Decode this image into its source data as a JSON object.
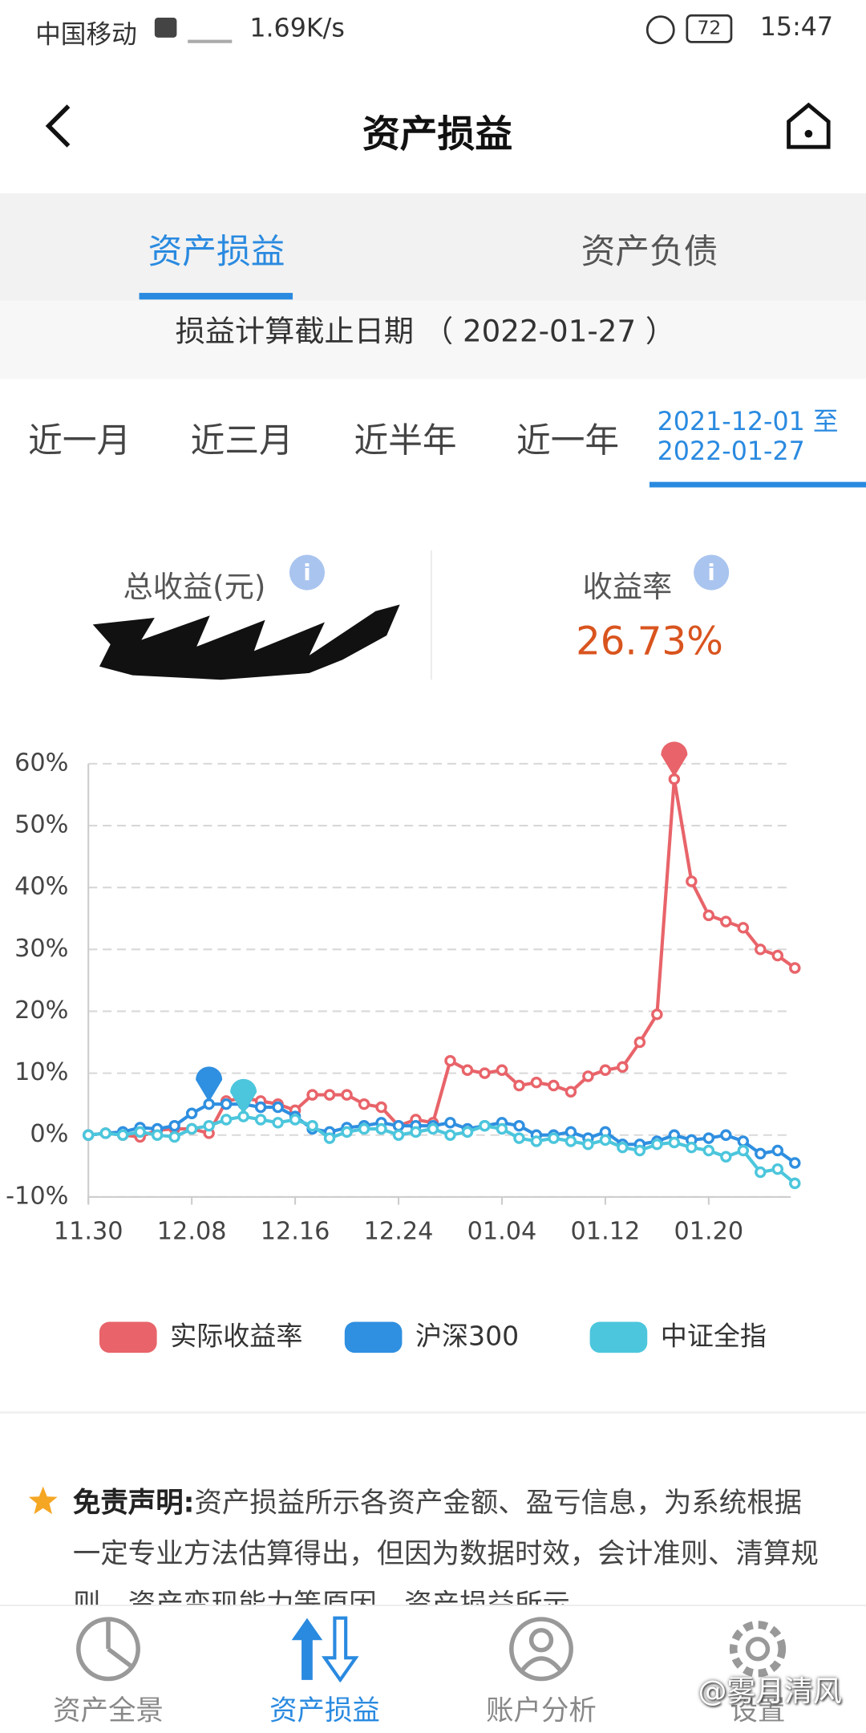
{
  "status_bar": {
    "carrier": "中国移动",
    "speed": "1.69K/s",
    "battery": "72",
    "time": "15:47"
  },
  "header": {
    "title": "资产损益"
  },
  "tabs": [
    "资产损益",
    "资产负债"
  ],
  "cutoff": "损益计算截止日期 （ 2022-01-27 ）",
  "periods": [
    "近一月",
    "近三月",
    "近半年",
    "近一年"
  ],
  "custom_range": [
    "2021-12-01 至",
    "2022-01-27"
  ],
  "summary": {
    "total_label": "总收益(元)",
    "rate_label": "收益率",
    "rate_value": "26.73%"
  },
  "chart_data": {
    "type": "line",
    "categories": [
      "11.30",
      null,
      null,
      null,
      null,
      null,
      "12.08",
      null,
      null,
      null,
      null,
      null,
      "12.16",
      null,
      null,
      null,
      null,
      null,
      "12.24",
      null,
      null,
      null,
      null,
      null,
      "01.04",
      null,
      null,
      null,
      null,
      null,
      "01.12",
      null,
      null,
      null,
      null,
      null,
      "01.20",
      null,
      null,
      null,
      null,
      null
    ],
    "series": [
      {
        "name": "实际收益率",
        "color": "#e8646a",
        "values": [
          0,
          0.3,
          0,
          -0.3,
          0.8,
          1,
          1,
          0.3,
          5.5,
          6,
          5.5,
          5,
          4,
          6.5,
          6.5,
          6.5,
          5,
          4.5,
          1.5,
          2.5,
          2,
          12,
          10.5,
          10,
          10.5,
          8,
          8.5,
          8,
          7,
          9.5,
          10.5,
          11,
          15,
          19.5,
          57.5,
          41,
          35.5,
          34.5,
          33.5,
          30,
          29,
          27
        ]
      },
      {
        "name": "沪深300",
        "color": "#2f8fe0",
        "values": [
          0,
          0.3,
          0.5,
          1.2,
          1,
          1.5,
          3.5,
          5,
          5,
          5,
          4.5,
          4.5,
          3,
          1,
          0.5,
          1.2,
          1.5,
          2,
          1.5,
          1.5,
          1.5,
          2,
          1,
          1.5,
          2,
          1.5,
          0,
          0,
          0.5,
          -0.5,
          0.5,
          -1.5,
          -1.5,
          -1,
          0,
          -0.8,
          -0.5,
          0,
          -1,
          -3,
          -2.5,
          -4.5
        ]
      },
      {
        "name": "中证全指",
        "color": "#4cc6dc",
        "values": [
          0,
          0.3,
          0,
          0.5,
          0,
          -0.3,
          1,
          1.5,
          2.5,
          3,
          2.5,
          2,
          2.5,
          1.5,
          -0.5,
          0.5,
          1,
          1,
          0,
          0.5,
          1,
          0,
          0.5,
          1.5,
          1,
          -0.5,
          -1,
          -0.5,
          -1,
          -1.5,
          -0.8,
          -2,
          -2.5,
          -1.5,
          -1.2,
          -2,
          -2.5,
          -3.5,
          -2.5,
          -6,
          -5.5,
          -7.8
        ]
      }
    ],
    "ylim": [
      -10,
      60
    ],
    "yticks": [
      {
        "value": -10,
        "label": "-10%"
      },
      {
        "value": 0,
        "label": "0%"
      },
      {
        "value": 10,
        "label": "10%"
      },
      {
        "value": 20,
        "label": "20%"
      },
      {
        "value": 30,
        "label": "30%"
      },
      {
        "value": 40,
        "label": "40%"
      },
      {
        "value": 50,
        "label": "50%"
      },
      {
        "value": 60,
        "label": "60%"
      }
    ],
    "grid": true,
    "legend": "bottom"
  },
  "disclaimer": {
    "label": "免责声明:",
    "text": "资产损益所示各资产金额、盈亏信息，为系统根据一定专业方法估算得出，但因为数据时效，会计准则、清算规则、资产变现能力等原因，资产损益所示"
  },
  "nav": [
    "资产全景",
    "资产损益",
    "账户分析",
    "设置"
  ],
  "watermark": "@雾月清风"
}
